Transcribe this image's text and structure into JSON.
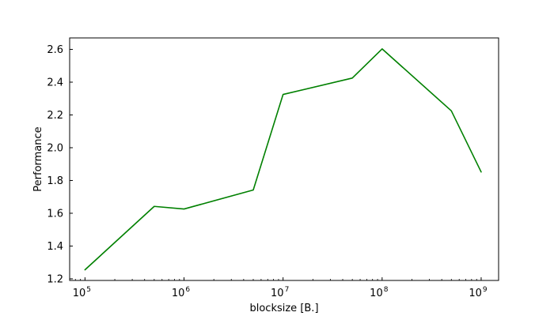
{
  "chart_data": {
    "type": "line",
    "xlabel": "blocksize [B.]",
    "ylabel": "Performance",
    "x_scale": "log",
    "xlim": [
      70000,
      1500000000
    ],
    "ylim": [
      1.19,
      2.67
    ],
    "x_ticks": [
      {
        "value": 100000,
        "base": "10",
        "exp": "5"
      },
      {
        "value": 1000000,
        "base": "10",
        "exp": "6"
      },
      {
        "value": 10000000,
        "base": "10",
        "exp": "7"
      },
      {
        "value": 100000000,
        "base": "10",
        "exp": "8"
      },
      {
        "value": 1000000000,
        "base": "10",
        "exp": "9"
      }
    ],
    "y_ticks": [
      "1.2",
      "1.4",
      "1.6",
      "1.8",
      "2.0",
      "2.2",
      "2.4",
      "2.6"
    ],
    "series": [
      {
        "color": "#008000",
        "points": [
          {
            "x": 100000,
            "y": 1.255
          },
          {
            "x": 500000,
            "y": 1.642
          },
          {
            "x": 1000000,
            "y": 1.626
          },
          {
            "x": 5000000,
            "y": 1.742
          },
          {
            "x": 10000000,
            "y": 2.325
          },
          {
            "x": 50000000,
            "y": 2.425
          },
          {
            "x": 100000000,
            "y": 2.603
          },
          {
            "x": 500000000,
            "y": 2.225
          },
          {
            "x": 1000000000,
            "y": 1.852
          }
        ]
      }
    ],
    "grid": false,
    "legend": "none"
  }
}
